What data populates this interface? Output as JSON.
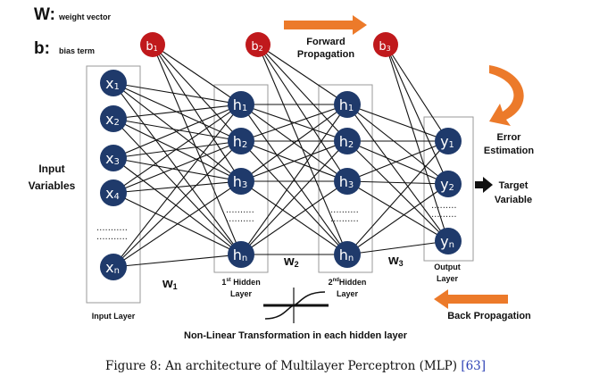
{
  "legend": {
    "w_symbol": "W:",
    "w_text": "weight vector",
    "b_symbol": "b:",
    "b_text": "bias term"
  },
  "labels": {
    "input_variables_line1": "Input",
    "input_variables_line2": "Variables",
    "input_layer": "Input Layer",
    "hidden1_line1_sup": "st",
    "hidden1_line1_num": "1",
    "hidden1_line1": "Hidden",
    "hidden1_line2": "Layer",
    "hidden2_line1_num": "2",
    "hidden2_line1_sup": "nd",
    "hidden2_line1": "Hidden",
    "hidden2_line2": "Layer",
    "output_line1": "Output",
    "output_line2": "Layer",
    "target_line1": "Target",
    "target_line2": "Variable",
    "forward_line1": "Forward",
    "forward_line2": "Propagation",
    "error_line1": "Error",
    "error_line2": "Estimation",
    "back_propagation": "Back Propagation",
    "nonlinear": "Non-Linear Transformation in each hidden layer"
  },
  "weights": {
    "w1": {
      "main": "w",
      "sub": "1"
    },
    "w2": {
      "main": "w",
      "sub": "2"
    },
    "w3": {
      "main": "w",
      "sub": "3"
    }
  },
  "nodes": {
    "input": [
      {
        "main": "x",
        "sub": "1"
      },
      {
        "main": "x",
        "sub": "2"
      },
      {
        "main": "x",
        "sub": "3"
      },
      {
        "main": "x",
        "sub": "4"
      },
      {
        "main": "x",
        "sub": "n"
      }
    ],
    "hidden1": [
      {
        "main": "h",
        "sub": "1"
      },
      {
        "main": "h",
        "sub": "2"
      },
      {
        "main": "h",
        "sub": "3"
      },
      {
        "main": "h",
        "sub": "n"
      }
    ],
    "hidden2": [
      {
        "main": "h",
        "sub": "1"
      },
      {
        "main": "h",
        "sub": "2"
      },
      {
        "main": "h",
        "sub": "3"
      },
      {
        "main": "h",
        "sub": "n"
      }
    ],
    "output": [
      {
        "main": "y",
        "sub": "1"
      },
      {
        "main": "y",
        "sub": "2"
      },
      {
        "main": "y",
        "sub": "n"
      }
    ],
    "bias": [
      {
        "main": "b",
        "sub": "1"
      },
      {
        "main": "b",
        "sub": "2"
      },
      {
        "main": "b",
        "sub": "3"
      }
    ]
  },
  "caption": {
    "text": "Figure 8: An architecture of Multilayer Perceptron (MLP)",
    "citation": "[63]"
  },
  "colors": {
    "node": "#1f3a6b",
    "bias": "#c0191c",
    "arrow_orange": "#ec7a2a",
    "citation": "#2b3fb5"
  }
}
